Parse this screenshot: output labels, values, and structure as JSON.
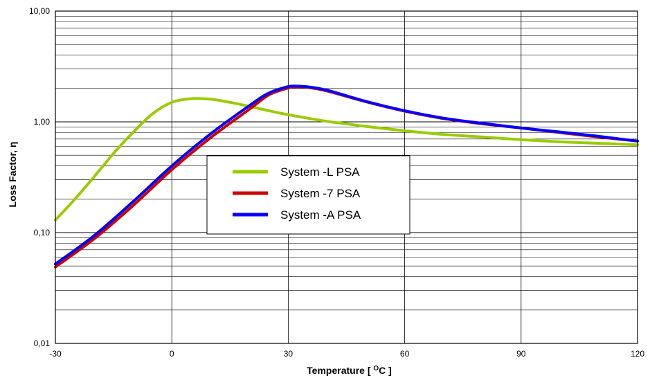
{
  "chart_data": {
    "type": "line",
    "title": "",
    "xlabel_main": "Temperature [ ",
    "xlabel_sup": "O",
    "xlabel_end": "C ]",
    "ylabel": "Loss Factor, η",
    "xlim": [
      -30,
      120
    ],
    "ylim": [
      0.01,
      10
    ],
    "yscale": "log",
    "grid": true,
    "legend_position": "center",
    "x_ticks": [
      "-30",
      "0",
      "30",
      "60",
      "90",
      "120"
    ],
    "y_ticks": [
      "0,01",
      "0,10",
      "1,00",
      "10,00"
    ],
    "x_tick_values": [
      -30,
      0,
      30,
      60,
      90,
      120
    ],
    "y_tick_values": [
      0.01,
      0.1,
      1,
      10
    ],
    "series": [
      {
        "name": "System -L PSA",
        "color": "#99cc00",
        "x": [
          -30,
          -25,
          -20,
          -15,
          -10,
          -5,
          0,
          5,
          10,
          15,
          20,
          25,
          30,
          35,
          40,
          45,
          50,
          60,
          70,
          80,
          90,
          100,
          110,
          120
        ],
        "y": [
          0.13,
          0.2,
          0.32,
          0.52,
          0.8,
          1.18,
          1.5,
          1.62,
          1.6,
          1.5,
          1.38,
          1.26,
          1.16,
          1.08,
          1.01,
          0.96,
          0.91,
          0.83,
          0.77,
          0.73,
          0.69,
          0.66,
          0.64,
          0.62
        ]
      },
      {
        "name": "System -7 PSA",
        "color": "#cc0000",
        "x": [
          -30,
          -20,
          -10,
          0,
          10,
          20,
          25,
          30,
          32,
          35,
          40,
          50,
          60,
          70,
          80,
          90,
          100,
          110,
          120
        ],
        "y": [
          0.049,
          0.088,
          0.175,
          0.37,
          0.72,
          1.3,
          1.75,
          2.02,
          2.07,
          2.05,
          1.9,
          1.52,
          1.25,
          1.07,
          0.96,
          0.88,
          0.8,
          0.73,
          0.67
        ]
      },
      {
        "name": "System -A PSA",
        "color": "#0000ff",
        "x": [
          -30,
          -20,
          -10,
          0,
          10,
          20,
          25,
          30,
          32,
          35,
          40,
          50,
          60,
          70,
          80,
          90,
          100,
          110,
          120
        ],
        "y": [
          0.052,
          0.094,
          0.19,
          0.4,
          0.78,
          1.4,
          1.82,
          2.08,
          2.1,
          2.07,
          1.93,
          1.53,
          1.26,
          1.08,
          0.97,
          0.88,
          0.81,
          0.74,
          0.67
        ]
      }
    ]
  }
}
